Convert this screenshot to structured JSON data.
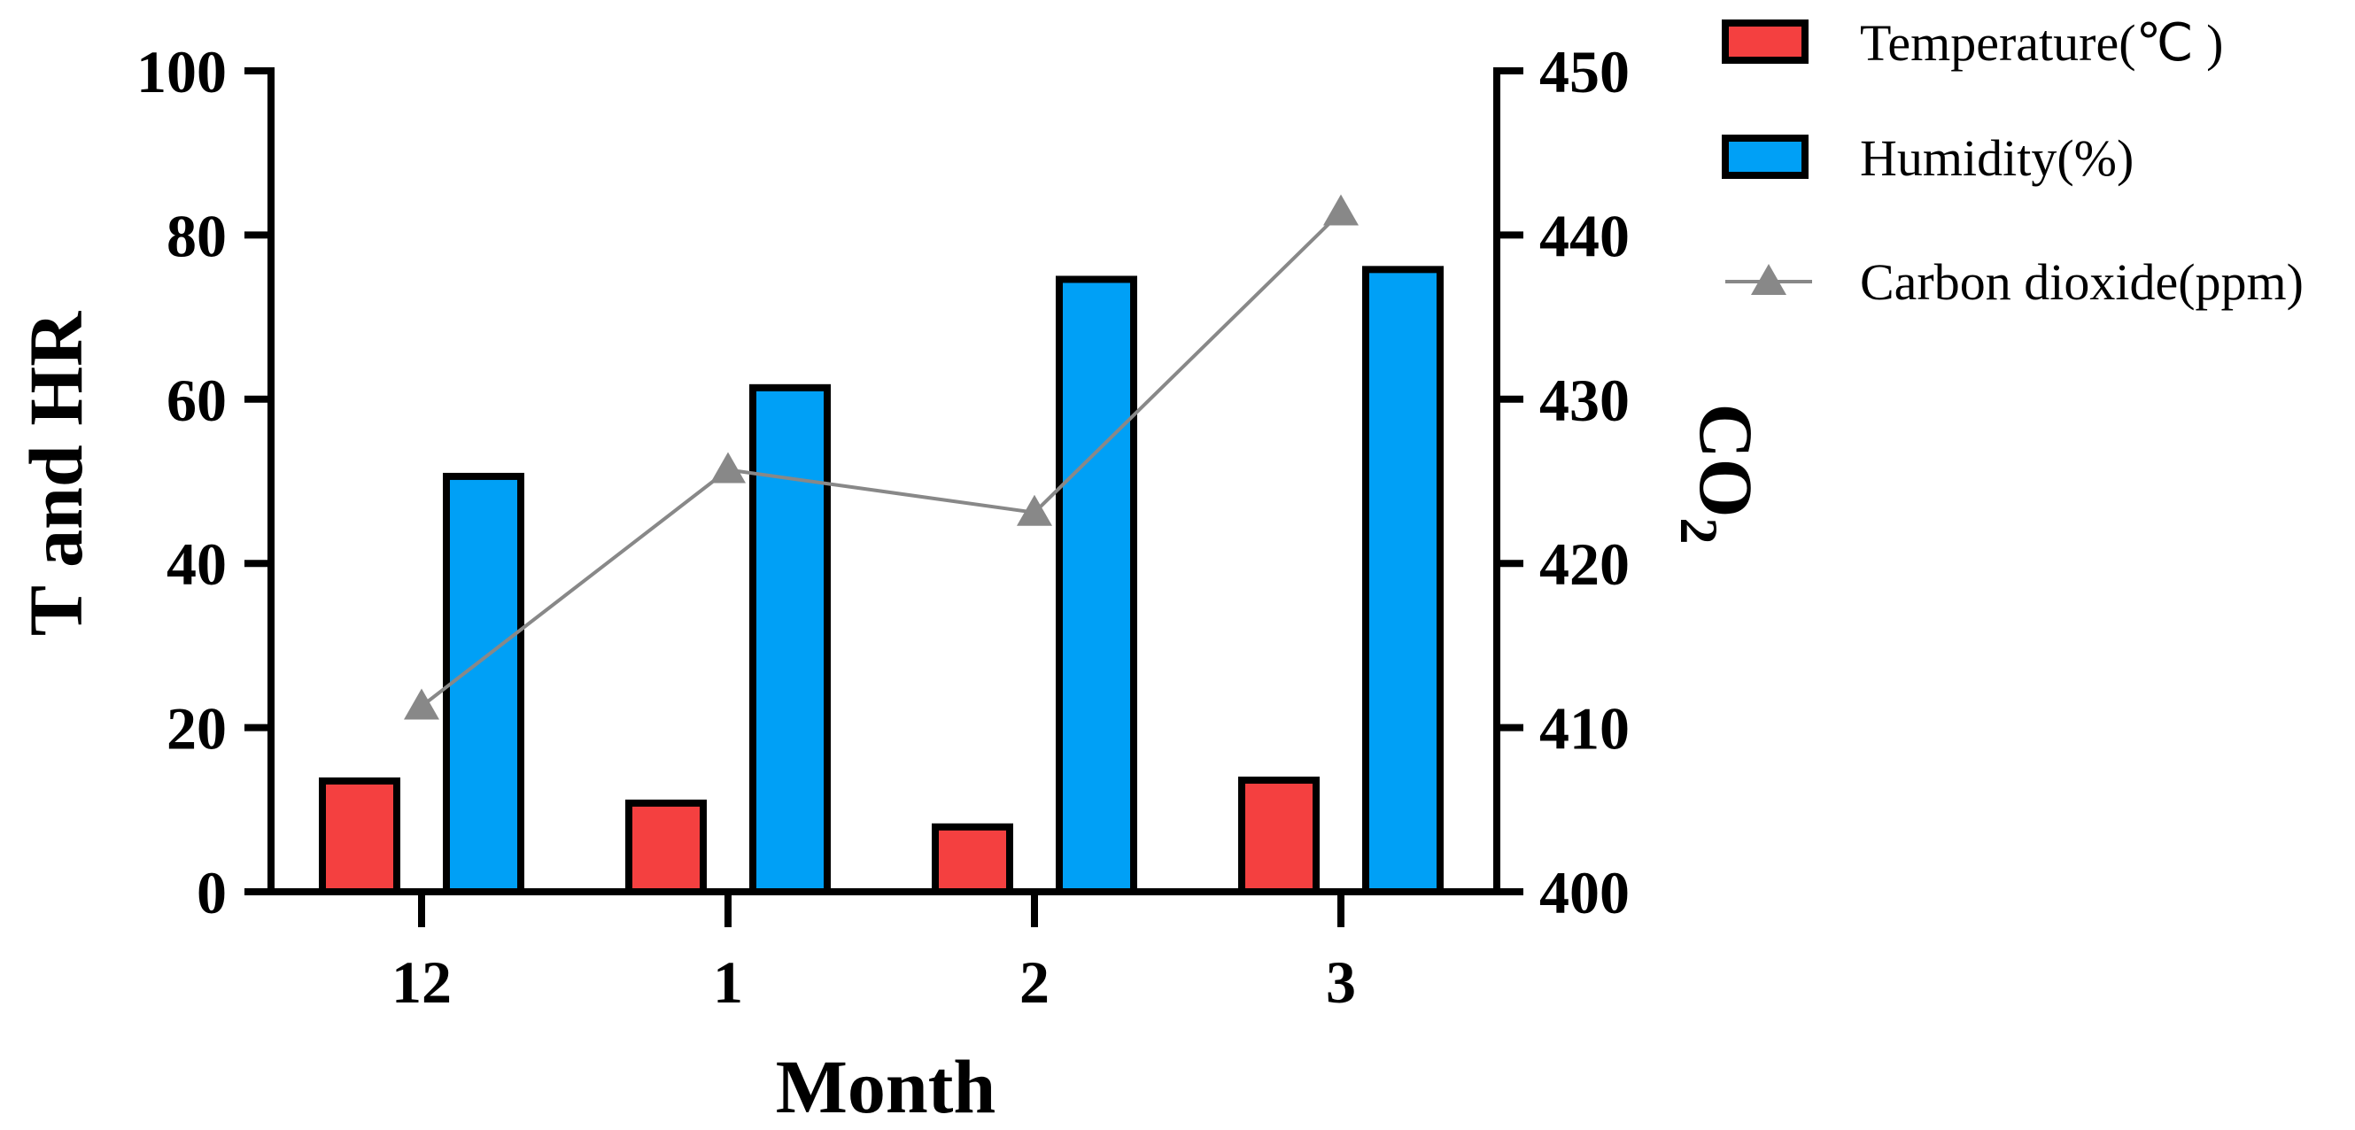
{
  "chart_data": {
    "type": "bar",
    "categories": [
      "12",
      "1",
      "2",
      "3"
    ],
    "xlabel": "Month",
    "ylabel": "T and HR",
    "y2label_main": "CO",
    "y2label_sub": "2",
    "ylim": [
      0,
      100
    ],
    "yticks": [
      "0",
      "20",
      "40",
      "60",
      "80",
      "100"
    ],
    "y2lim": [
      400,
      450
    ],
    "y2ticks": [
      "400",
      "410",
      "420",
      "430",
      "440",
      "450"
    ],
    "series": [
      {
        "name": "Temperature(℃ )",
        "type": "bar",
        "axis": "left",
        "color": "#f44040",
        "values": [
          13.5,
          10.8,
          7.9,
          13.6
        ]
      },
      {
        "name": "Humidity(%)",
        "type": "bar",
        "axis": "left",
        "color": "#00a0f6",
        "values": [
          50.6,
          61.4,
          74.6,
          75.8
        ]
      },
      {
        "name": "Carbon dioxide(ppm)",
        "type": "line",
        "axis": "right",
        "color": "#888888",
        "marker": "triangle",
        "values": [
          411.3,
          425.7,
          423.1,
          441.4
        ]
      }
    ],
    "legend_position": "top-right",
    "grid": false
  }
}
